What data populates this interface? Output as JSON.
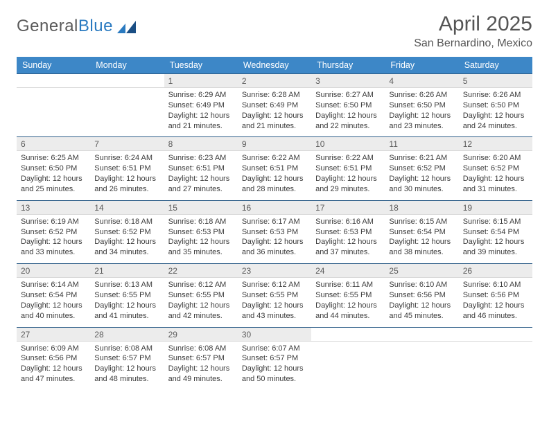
{
  "logo": {
    "textA": "General",
    "textB": "Blue"
  },
  "title": "April 2025",
  "location": "San Bernardino, Mexico",
  "colors": {
    "headerBg": "#3d87c7",
    "rowTopBorder": "#2a5b86",
    "dayNumBg": "#ececec"
  },
  "weekdays": [
    "Sunday",
    "Monday",
    "Tuesday",
    "Wednesday",
    "Thursday",
    "Friday",
    "Saturday"
  ],
  "weeks": [
    [
      null,
      null,
      {
        "n": "1",
        "sr": "6:29 AM",
        "ss": "6:49 PM",
        "dl": "12 hours and 21 minutes."
      },
      {
        "n": "2",
        "sr": "6:28 AM",
        "ss": "6:49 PM",
        "dl": "12 hours and 21 minutes."
      },
      {
        "n": "3",
        "sr": "6:27 AM",
        "ss": "6:50 PM",
        "dl": "12 hours and 22 minutes."
      },
      {
        "n": "4",
        "sr": "6:26 AM",
        "ss": "6:50 PM",
        "dl": "12 hours and 23 minutes."
      },
      {
        "n": "5",
        "sr": "6:26 AM",
        "ss": "6:50 PM",
        "dl": "12 hours and 24 minutes."
      }
    ],
    [
      {
        "n": "6",
        "sr": "6:25 AM",
        "ss": "6:50 PM",
        "dl": "12 hours and 25 minutes."
      },
      {
        "n": "7",
        "sr": "6:24 AM",
        "ss": "6:51 PM",
        "dl": "12 hours and 26 minutes."
      },
      {
        "n": "8",
        "sr": "6:23 AM",
        "ss": "6:51 PM",
        "dl": "12 hours and 27 minutes."
      },
      {
        "n": "9",
        "sr": "6:22 AM",
        "ss": "6:51 PM",
        "dl": "12 hours and 28 minutes."
      },
      {
        "n": "10",
        "sr": "6:22 AM",
        "ss": "6:51 PM",
        "dl": "12 hours and 29 minutes."
      },
      {
        "n": "11",
        "sr": "6:21 AM",
        "ss": "6:52 PM",
        "dl": "12 hours and 30 minutes."
      },
      {
        "n": "12",
        "sr": "6:20 AM",
        "ss": "6:52 PM",
        "dl": "12 hours and 31 minutes."
      }
    ],
    [
      {
        "n": "13",
        "sr": "6:19 AM",
        "ss": "6:52 PM",
        "dl": "12 hours and 33 minutes."
      },
      {
        "n": "14",
        "sr": "6:18 AM",
        "ss": "6:52 PM",
        "dl": "12 hours and 34 minutes."
      },
      {
        "n": "15",
        "sr": "6:18 AM",
        "ss": "6:53 PM",
        "dl": "12 hours and 35 minutes."
      },
      {
        "n": "16",
        "sr": "6:17 AM",
        "ss": "6:53 PM",
        "dl": "12 hours and 36 minutes."
      },
      {
        "n": "17",
        "sr": "6:16 AM",
        "ss": "6:53 PM",
        "dl": "12 hours and 37 minutes."
      },
      {
        "n": "18",
        "sr": "6:15 AM",
        "ss": "6:54 PM",
        "dl": "12 hours and 38 minutes."
      },
      {
        "n": "19",
        "sr": "6:15 AM",
        "ss": "6:54 PM",
        "dl": "12 hours and 39 minutes."
      }
    ],
    [
      {
        "n": "20",
        "sr": "6:14 AM",
        "ss": "6:54 PM",
        "dl": "12 hours and 40 minutes."
      },
      {
        "n": "21",
        "sr": "6:13 AM",
        "ss": "6:55 PM",
        "dl": "12 hours and 41 minutes."
      },
      {
        "n": "22",
        "sr": "6:12 AM",
        "ss": "6:55 PM",
        "dl": "12 hours and 42 minutes."
      },
      {
        "n": "23",
        "sr": "6:12 AM",
        "ss": "6:55 PM",
        "dl": "12 hours and 43 minutes."
      },
      {
        "n": "24",
        "sr": "6:11 AM",
        "ss": "6:55 PM",
        "dl": "12 hours and 44 minutes."
      },
      {
        "n": "25",
        "sr": "6:10 AM",
        "ss": "6:56 PM",
        "dl": "12 hours and 45 minutes."
      },
      {
        "n": "26",
        "sr": "6:10 AM",
        "ss": "6:56 PM",
        "dl": "12 hours and 46 minutes."
      }
    ],
    [
      {
        "n": "27",
        "sr": "6:09 AM",
        "ss": "6:56 PM",
        "dl": "12 hours and 47 minutes."
      },
      {
        "n": "28",
        "sr": "6:08 AM",
        "ss": "6:57 PM",
        "dl": "12 hours and 48 minutes."
      },
      {
        "n": "29",
        "sr": "6:08 AM",
        "ss": "6:57 PM",
        "dl": "12 hours and 49 minutes."
      },
      {
        "n": "30",
        "sr": "6:07 AM",
        "ss": "6:57 PM",
        "dl": "12 hours and 50 minutes."
      },
      null,
      null,
      null
    ]
  ],
  "labels": {
    "sunrise": "Sunrise: ",
    "sunset": "Sunset: ",
    "daylight": "Daylight: "
  }
}
